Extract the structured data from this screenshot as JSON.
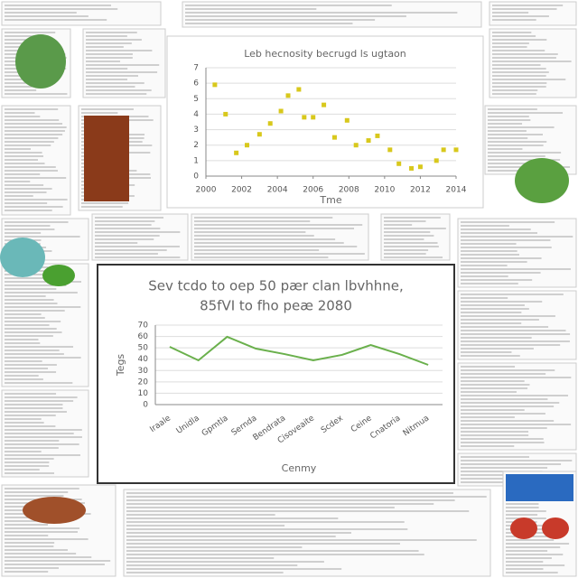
{
  "chart_data": [
    {
      "type": "scatter",
      "title": "Leb hecnosity becrugd ls ugtaon",
      "x_label": "Tme",
      "color": "#d8c81c",
      "x": [
        2000.5,
        2001.1,
        2001.7,
        2002.3,
        2003.0,
        2003.6,
        2004.2,
        2004.6,
        2005.2,
        2005.5,
        2006.0,
        2006.6,
        2007.2,
        2007.9,
        2008.4,
        2009.1,
        2009.6,
        2010.3,
        2010.8,
        2011.5,
        2012.0,
        2012.9,
        2013.3,
        2014.0
      ],
      "values": [
        5.9,
        4.0,
        1.5,
        2.0,
        2.7,
        3.4,
        4.2,
        5.2,
        5.6,
        3.8,
        3.8,
        4.6,
        2.5,
        3.6,
        2.0,
        2.3,
        2.6,
        1.7,
        0.8,
        0.5,
        0.6,
        1.0,
        1.7,
        1.7
      ],
      "xlim": [
        2000,
        2014
      ],
      "xticks": [
        2000,
        2002,
        2004,
        2006,
        2008,
        2010,
        2012,
        2014
      ],
      "ylim": [
        0,
        7
      ],
      "yticks": [
        0,
        1,
        2,
        3,
        4,
        5,
        6,
        7
      ],
      "grid": true
    },
    {
      "type": "line",
      "title": [
        "Sev tcdo to oep 50 pær clan lbvhhne,",
        "85fVI to fho peæ 2080"
      ],
      "x_label": "Cenmy",
      "y_label": "Tegs",
      "color": "#6ab04c",
      "categories": [
        "Iraale",
        "Unidla",
        "Gpmtla",
        "Sernda",
        "Bendrata",
        "Cisoveaite",
        "Scdex",
        "Ceine",
        "Cnatoria",
        "Nitmua"
      ],
      "values": [
        50.9,
        39,
        59.7,
        49.3,
        44.5,
        39,
        43.8,
        52.5,
        44.5,
        35
      ],
      "ylim": [
        0,
        70
      ],
      "yticks": [
        0,
        10,
        20,
        30,
        40,
        50,
        60,
        70
      ],
      "grid": true
    }
  ]
}
